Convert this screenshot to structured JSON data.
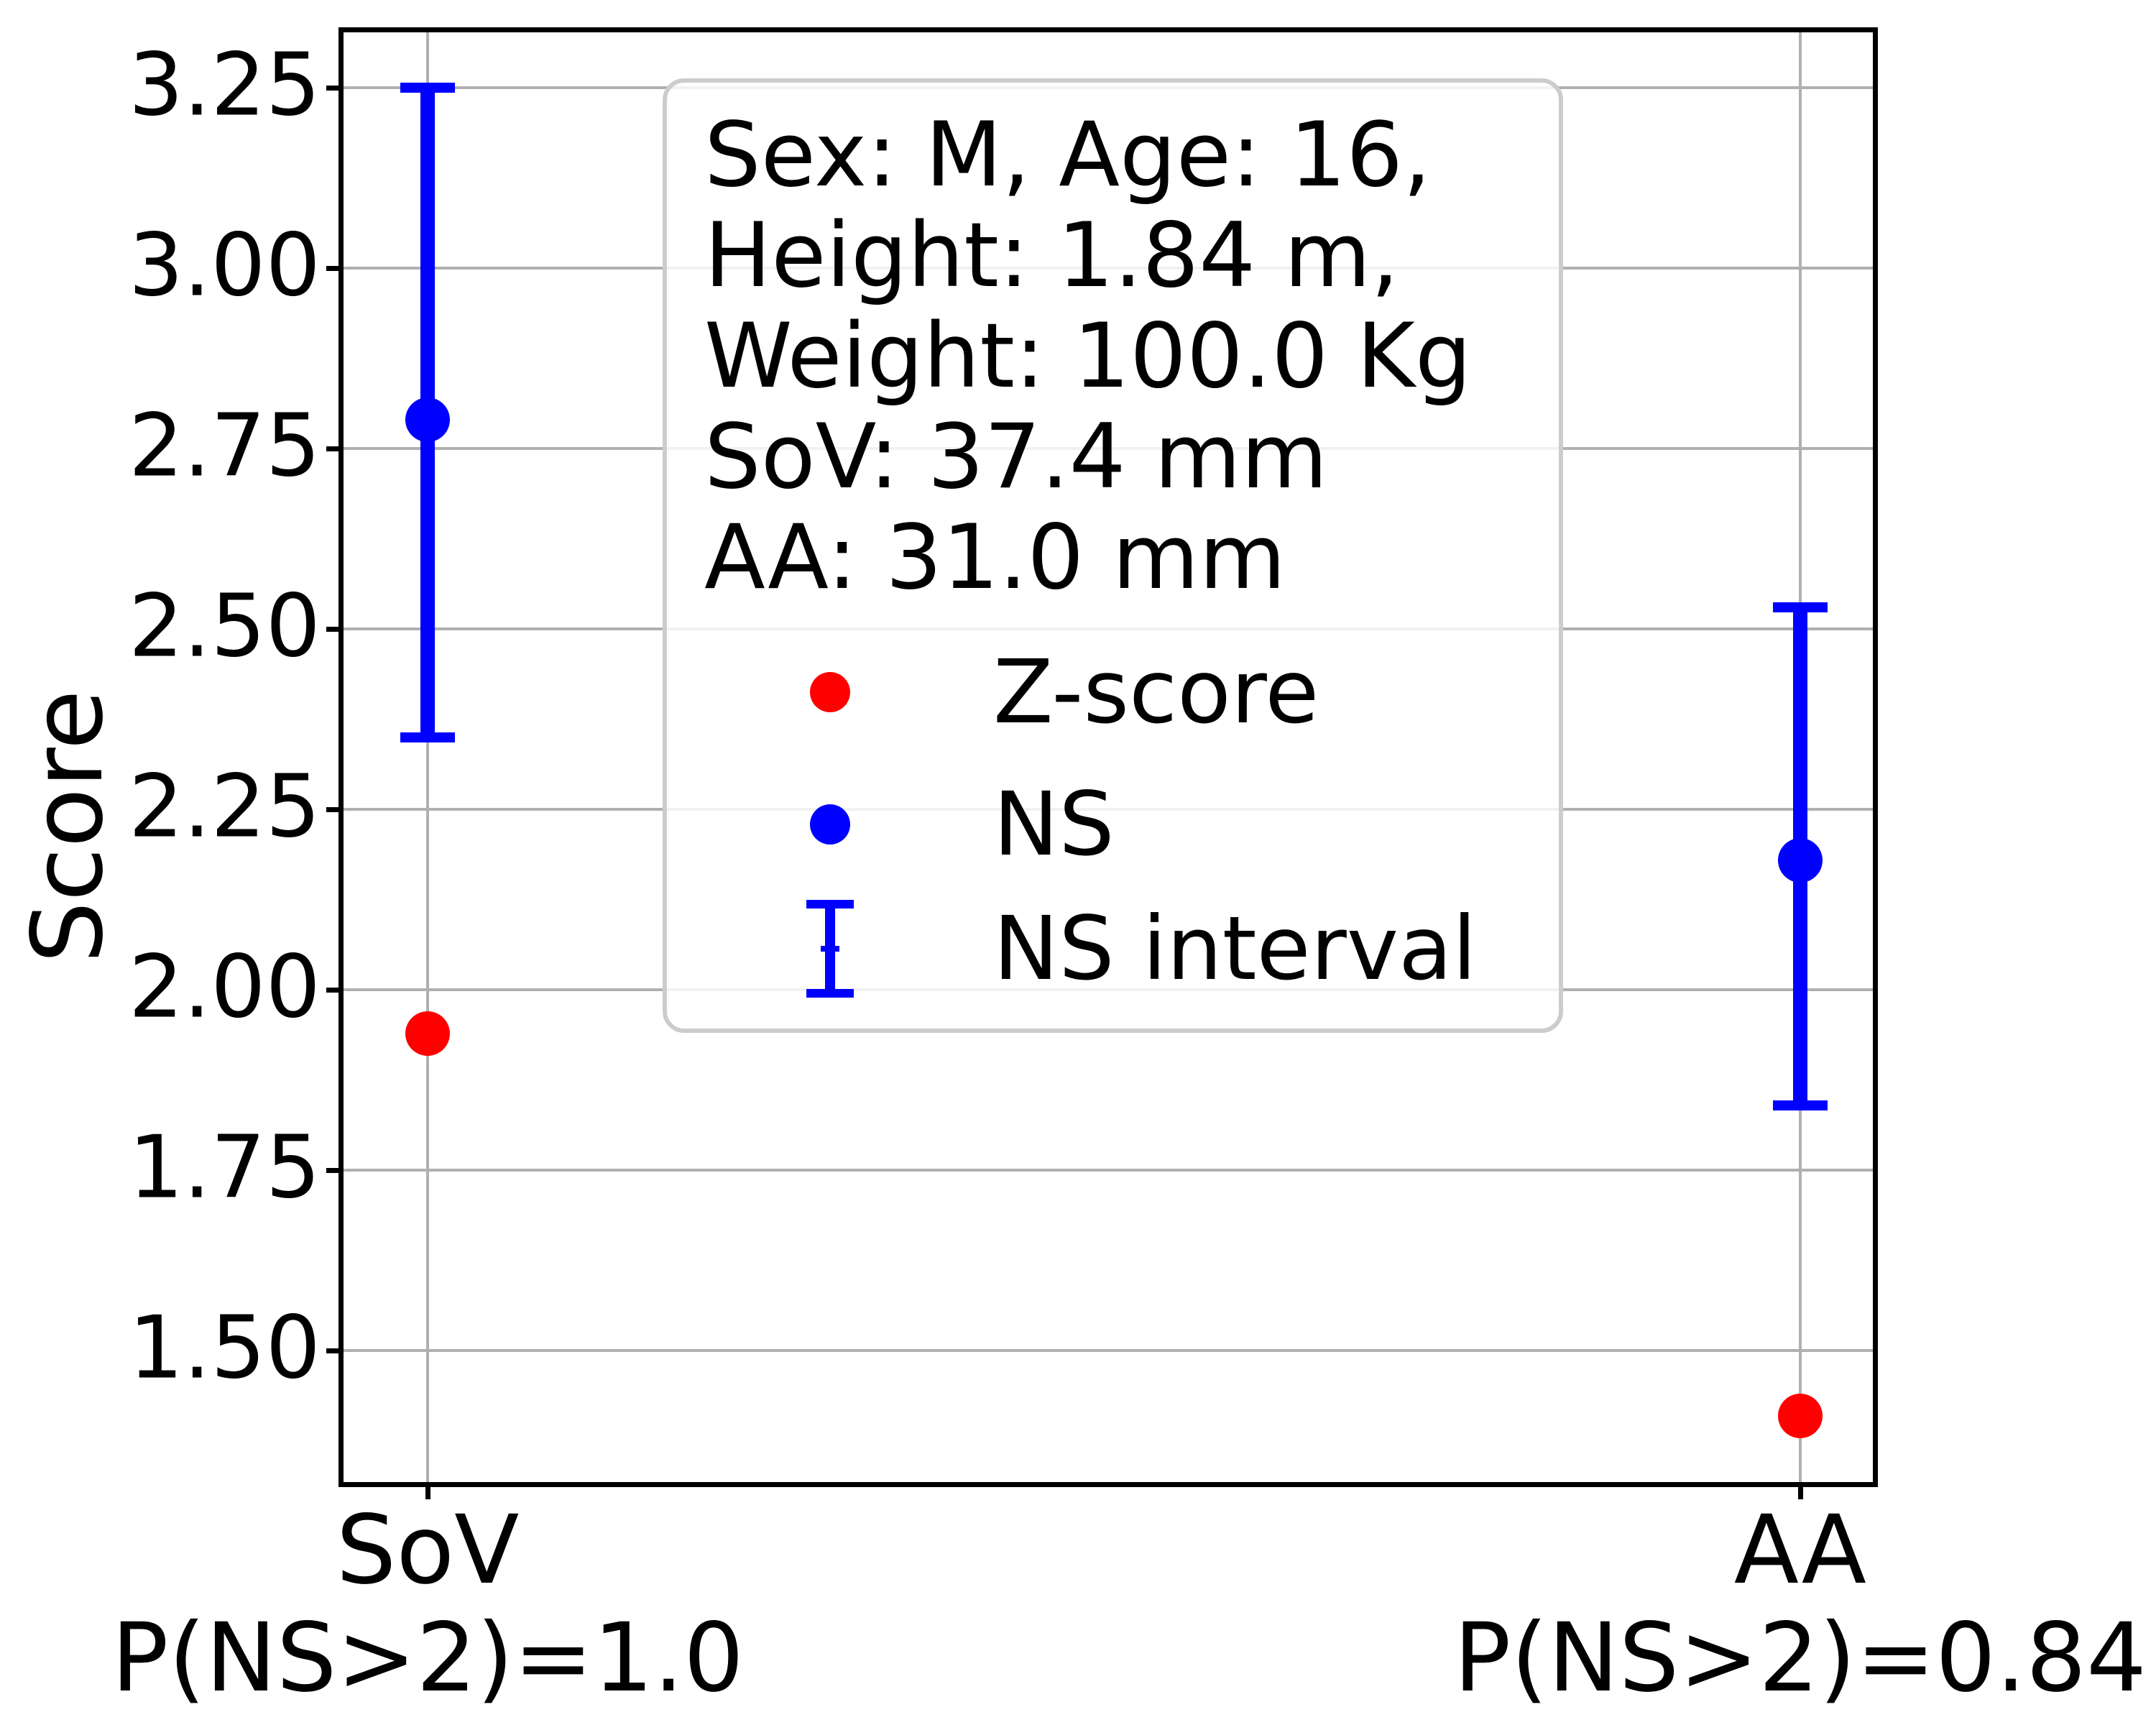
{
  "chart_data": {
    "type": "scatter",
    "title": "",
    "xlabel": "",
    "ylabel": "Score",
    "ylim": [
      1.318,
      3.327
    ],
    "yticks": [
      1.5,
      1.75,
      2.0,
      2.25,
      2.5,
      2.75,
      3.0,
      3.25
    ],
    "ytick_decimals": 2,
    "grid": true,
    "categories": [
      {
        "name": "SoV",
        "sublabel": "P(NS>2)=1.0",
        "x_frac": 0.055
      },
      {
        "name": "AA",
        "sublabel": "P(NS>2)=0.84",
        "x_frac": 0.9525
      }
    ],
    "series": [
      {
        "name": "Z-score",
        "kind": "scatter",
        "color": "#ff0000",
        "values": [
          1.94,
          1.41
        ]
      },
      {
        "name": "NS",
        "kind": "scatter",
        "color": "#0000ff",
        "values": [
          2.79,
          2.18
        ]
      },
      {
        "name": "NS interval",
        "kind": "errorbar",
        "color": "#0000ff",
        "intervals": [
          [
            2.35,
            3.25
          ],
          [
            1.84,
            2.53
          ]
        ]
      }
    ],
    "legend": {
      "position": "upper center inside",
      "title_lines": [
        "Sex: M, Age: 16,",
        "Height: 1.84 m,",
        "Weight: 100.0 Kg",
        "SoV: 37.4 mm",
        "AA: 31.0 mm"
      ],
      "entries": [
        {
          "label": "Z-score",
          "marker": "red-dot"
        },
        {
          "label": "NS",
          "marker": "blue-dot"
        },
        {
          "label": "NS interval",
          "marker": "blue-errorbar"
        }
      ]
    },
    "colors": {
      "z_score": "#ff0000",
      "ns": "#0000ff",
      "grid": "#b0b0b0",
      "spine": "#000000",
      "legend_edge": "#cccccc"
    }
  }
}
